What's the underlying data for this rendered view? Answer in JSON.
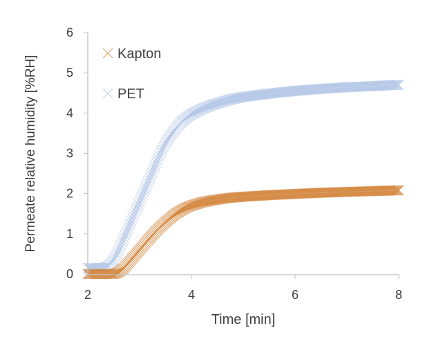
{
  "chart_data": {
    "type": "scatter",
    "title": "",
    "xlabel": "Time [min]",
    "ylabel": "Permeate relative humidity  [%RH]",
    "xlim": [
      2,
      8
    ],
    "ylim": [
      0,
      6
    ],
    "xticks": [
      2,
      4,
      6,
      8
    ],
    "yticks": [
      0,
      1,
      2,
      3,
      4,
      5,
      6
    ],
    "grid": false,
    "legend": "top-left",
    "series": [
      {
        "name": "Kapton",
        "color": "#D4873F",
        "x": [
          2.0,
          2.3,
          2.5,
          2.6,
          2.7,
          2.8,
          2.9,
          3.0,
          3.1,
          3.2,
          3.3,
          3.4,
          3.5,
          3.6,
          3.7,
          3.8,
          3.9,
          4.0,
          4.2,
          4.4,
          4.6,
          4.8,
          5.0,
          5.5,
          6.0,
          6.5,
          7.0,
          7.5,
          8.0
        ],
        "y": [
          0,
          0,
          0,
          0.05,
          0.15,
          0.3,
          0.45,
          0.6,
          0.75,
          0.9,
          1.04,
          1.17,
          1.29,
          1.4,
          1.5,
          1.58,
          1.65,
          1.7,
          1.78,
          1.83,
          1.87,
          1.9,
          1.92,
          1.96,
          1.99,
          2.02,
          2.04,
          2.06,
          2.08
        ]
      },
      {
        "name": "PET",
        "color": "#B4C7E7",
        "x": [
          2.0,
          2.3,
          2.4,
          2.5,
          2.6,
          2.7,
          2.8,
          2.9,
          3.0,
          3.1,
          3.2,
          3.3,
          3.4,
          3.5,
          3.6,
          3.7,
          3.8,
          3.9,
          4.0,
          4.2,
          4.4,
          4.6,
          4.8,
          5.0,
          5.5,
          6.0,
          6.5,
          7.0,
          7.5,
          8.0
        ],
        "y": [
          0.15,
          0.15,
          0.2,
          0.35,
          0.6,
          0.9,
          1.2,
          1.5,
          1.8,
          2.1,
          2.4,
          2.7,
          3.0,
          3.25,
          3.45,
          3.62,
          3.77,
          3.88,
          3.97,
          4.1,
          4.2,
          4.28,
          4.35,
          4.4,
          4.48,
          4.55,
          4.6,
          4.64,
          4.67,
          4.7
        ]
      }
    ]
  }
}
